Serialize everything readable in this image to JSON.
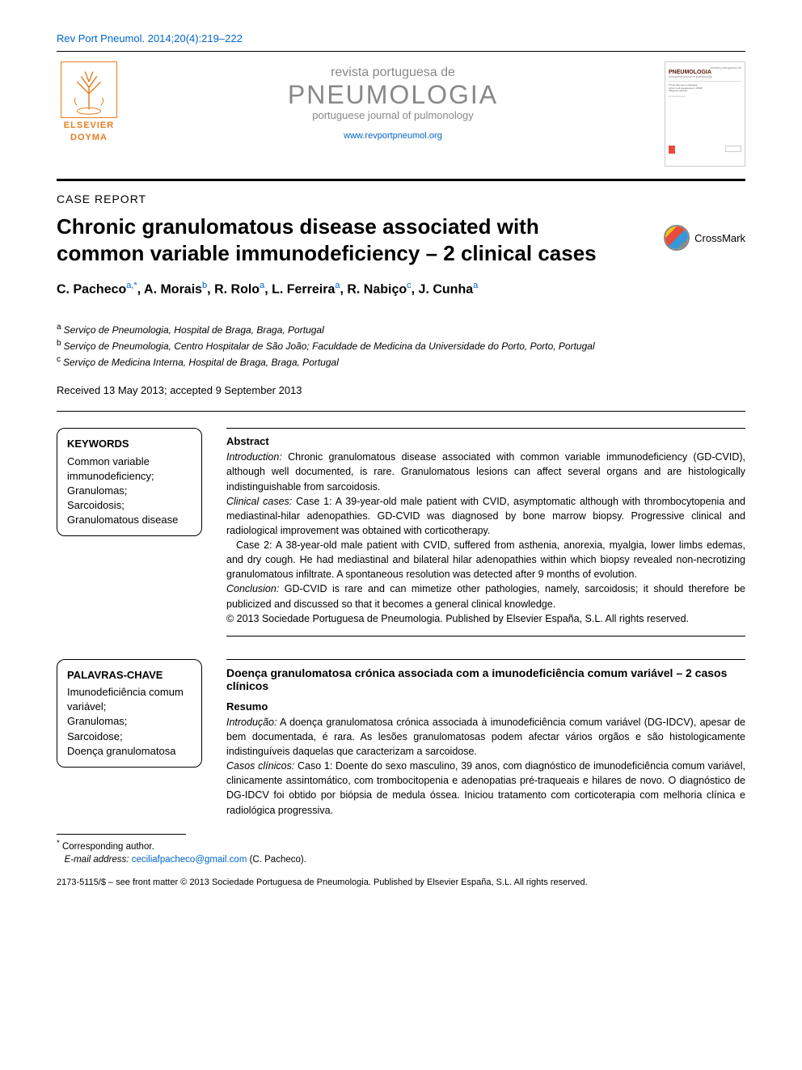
{
  "colors": {
    "link": "#0066cc",
    "elsevier": "#e67e22",
    "journal_grey": "#888888",
    "text": "#000000",
    "cover_title": "#59180b"
  },
  "fonts": {
    "body_family": "Arial, Helvetica, sans-serif",
    "title_size_pt": 20,
    "body_size_pt": 10,
    "abstract_size_pt": 9.5
  },
  "header": {
    "citation": "Rev Port Pneumol. 2014;20(4):219–222",
    "elsevier_label": "ELSEVIER",
    "doyma_label": "DOYMA",
    "journal_pre": "revista portuguesa de",
    "journal_main": "PNEUMOLOGIA",
    "journal_sub": "portuguese journal of pulmonology",
    "journal_url": "www.revportpneumol.org",
    "cover_hint": "PNEUMOLOGIA"
  },
  "article": {
    "type": "CASE REPORT",
    "title": "Chronic granulomatous disease associated with common variable immunodeficiency – 2 clinical cases",
    "crossmark": "CrossMark",
    "authors_html": "C. Pacheco<sup>a,*</sup>, A. Morais<sup>b</sup>, R. Rolo<sup>a</sup>, L. Ferreira<sup>a</sup>, R. Nabiço<sup>c</sup>, J. Cunha<sup>a</sup>",
    "affiliations": {
      "a": "Serviço de Pneumologia, Hospital de Braga, Braga, Portugal",
      "b": "Serviço de Pneumologia, Centro Hospitalar de São João; Faculdade de Medicina da Universidade do Porto, Porto, Portugal",
      "c": "Serviço de Medicina Interna, Hospital de Braga, Braga, Portugal"
    },
    "dates": "Received 13 May 2013; accepted 9 September 2013"
  },
  "keywords_en": {
    "title": "KEYWORDS",
    "items": "Common variable immunodeficiency;\nGranulomas;\nSarcoidosis;\nGranulomatous disease"
  },
  "abstract_en": {
    "heading": "Abstract",
    "intro_label": "Introduction:",
    "intro": " Chronic granulomatous disease associated with common variable immunodeficiency (GD-CVID), although well documented, is rare. Granulomatous lesions can affect several organs and are histologically indistinguishable from sarcoidosis.",
    "cases_label": "Clinical cases:",
    "case1": " Case 1: A 39-year-old male patient with CVID, asymptomatic although with thrombocytopenia and mediastinal-hilar adenopathies. GD-CVID was diagnosed by bone marrow biopsy. Progressive clinical and radiological improvement was obtained with corticotherapy.",
    "case2": "Case 2: A 38-year-old male patient with CVID, suffered from asthenia, anorexia, myalgia, lower limbs edemas, and dry cough. He had mediastinal and bilateral hilar adenopathies within which biopsy revealed non-necrotizing granulomatous infiltrate. A spontaneous resolution was detected after 9 months of evolution.",
    "conclusion_label": "Conclusion:",
    "conclusion": " GD-CVID is rare and can mimetize other pathologies, namely, sarcoidosis; it should therefore be publicized and discussed so that it becomes a general clinical knowledge.",
    "copyright": "© 2013 Sociedade Portuguesa de Pneumologia. Published by Elsevier España, S.L. All rights reserved."
  },
  "keywords_pt": {
    "title": "PALAVRAS-CHAVE",
    "items": "Imunodeficiência comum variável;\nGranulomas;\nSarcoidose;\nDoença granulomatosa"
  },
  "abstract_pt": {
    "title": "Doença granulomatosa crónica associada com a imunodeficiência comum variável – 2 casos clínicos",
    "heading": "Resumo",
    "intro_label": "Introdução:",
    "intro": " A doença granulomatosa crónica associada à imunodeficiência comum variável (DG-IDCV), apesar de bem documentada, é rara. As lesões granulomatosas podem afectar vários orgãos e são histologicamente indistinguíveis daquelas que caracterizam a sarcoidose.",
    "cases_label": "Casos clínicos:",
    "case1": " Caso 1: Doente do sexo masculino, 39 anos, com diagnóstico de imunodeficiência comum variável, clinicamente assintomático, com trombocitopenia e adenopatias pré-traqueais e hilares de novo. O diagnóstico de DG-IDCV foi obtido por biópsia de medula óssea. Iniciou tratamento com corticoterapia com melhoria clínica e radiológica progressiva."
  },
  "footnote": {
    "corresponding": "Corresponding author.",
    "email_label": "E-mail address:",
    "email": "ceciliafpacheco@gmail.com",
    "email_suffix": " (C. Pacheco)."
  },
  "footer": "2173-5115/$ – see front matter © 2013 Sociedade Portuguesa de Pneumologia. Published by Elsevier España, S.L. All rights reserved."
}
